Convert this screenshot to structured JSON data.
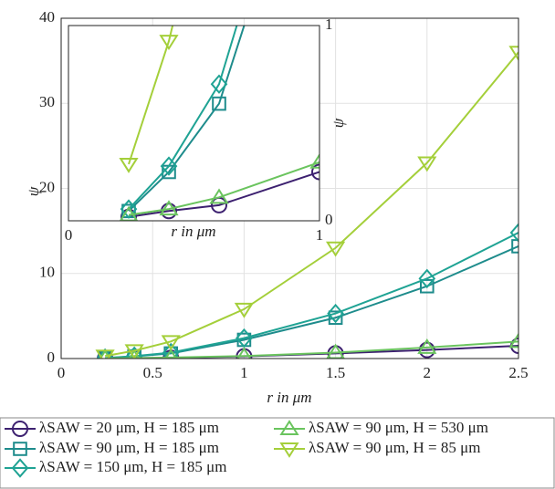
{
  "chart_data": {
    "type": "line",
    "xlabel": "r in μm",
    "ylabel": "ψ",
    "x": [
      0.24,
      0.4,
      0.6,
      1,
      1.5,
      2,
      2.5
    ],
    "xlim": [
      0,
      2.5
    ],
    "xticks": [
      0,
      0.5,
      1,
      1.5,
      2,
      2.5
    ],
    "ylim": [
      0,
      40
    ],
    "yticks": [
      0,
      10,
      20,
      30,
      40
    ],
    "grid": true,
    "series": [
      {
        "name": "λSAW = 20 μm, H = 185 μm",
        "color": "#3d2170",
        "marker": "circle",
        "values": [
          0.02,
          0.05,
          0.08,
          0.25,
          0.6,
          1.0,
          1.5
        ]
      },
      {
        "name": "λSAW = 90 μm, H = 185 μm",
        "color": "#1e8c8c",
        "marker": "square",
        "values": [
          0.05,
          0.25,
          0.6,
          2.2,
          4.8,
          8.5,
          13.2
        ]
      },
      {
        "name": "λSAW = 150 μm, H = 185 μm",
        "color": "#1fa394",
        "marker": "diamond",
        "values": [
          0.06,
          0.28,
          0.7,
          2.4,
          5.3,
          9.4,
          14.8
        ]
      },
      {
        "name": "λSAW = 90 μm, H = 530 μm",
        "color": "#6ac45e",
        "marker": "triangle-up",
        "values": [
          0.03,
          0.06,
          0.12,
          0.3,
          0.7,
          1.3,
          2.0
        ]
      },
      {
        "name": "λSAW = 90 μm, H = 85 μm",
        "color": "#a4cf3a",
        "marker": "triangle-down",
        "values": [
          0.29,
          0.92,
          2.0,
          5.8,
          13,
          23,
          36
        ]
      }
    ],
    "inset": {
      "xlabel": "r in μm",
      "ylabel": "ψ",
      "xlim": [
        0,
        1
      ],
      "xticks": [
        0,
        1
      ],
      "ylim": [
        0,
        1
      ],
      "yticks": [
        0,
        1
      ]
    }
  }
}
